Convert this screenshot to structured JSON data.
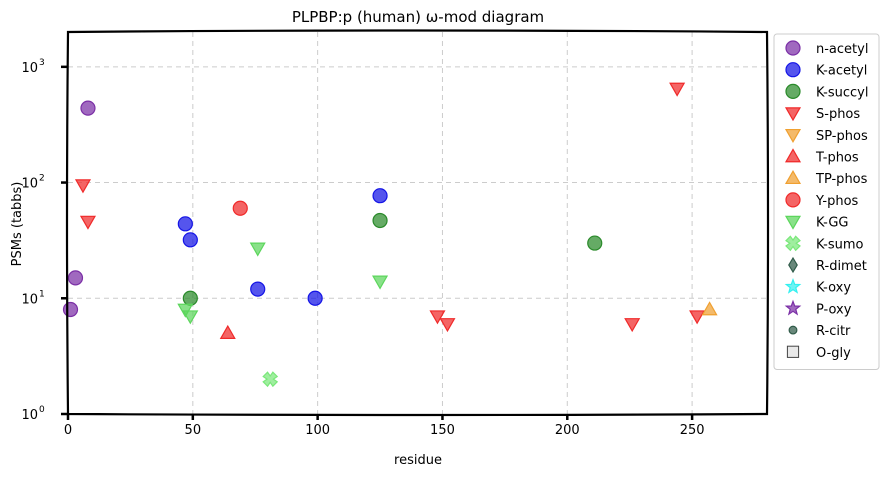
{
  "chart_data": {
    "type": "scatter",
    "title": "PLPBP:p (human) ω-mod diagram",
    "xlabel": "residue",
    "ylabel": "PSMs (tabbs)",
    "xlim": [
      0,
      280
    ],
    "ylim": [
      1,
      2000
    ],
    "yscale": "log",
    "grid": true,
    "legend_position": "right, outside plot",
    "x_ticks": [
      {
        "value": 0,
        "label": "0"
      },
      {
        "value": 50,
        "label": "50"
      },
      {
        "value": 100,
        "label": "100"
      },
      {
        "value": 150,
        "label": "150"
      },
      {
        "value": 200,
        "label": "200"
      },
      {
        "value": 250,
        "label": "250"
      }
    ],
    "y_ticks": [
      {
        "value": 1,
        "label": "10",
        "exp": "0"
      },
      {
        "value": 10,
        "label": "10",
        "exp": "1"
      },
      {
        "value": 100,
        "label": "10",
        "exp": "2"
      },
      {
        "value": 1000,
        "label": "10",
        "exp": "3"
      }
    ],
    "series": [
      {
        "name": "n-acetyl",
        "marker": "circle",
        "color": "#7b2fa6",
        "points": [
          [
            1,
            8
          ],
          [
            3,
            15
          ],
          [
            8,
            440
          ]
        ]
      },
      {
        "name": "K-acetyl",
        "marker": "circle",
        "color": "#1414e6",
        "points": [
          [
            47,
            44
          ],
          [
            49,
            32
          ],
          [
            76,
            12
          ],
          [
            99,
            10
          ],
          [
            125,
            77
          ]
        ]
      },
      {
        "name": "K-succyl",
        "marker": "circle",
        "color": "#2a8a2a",
        "points": [
          [
            49,
            10
          ],
          [
            125,
            47
          ],
          [
            211,
            30
          ]
        ]
      },
      {
        "name": "S-phos",
        "marker": "triangle-down",
        "color": "#f02a2a",
        "points": [
          [
            6,
            95
          ],
          [
            8,
            46
          ],
          [
            148,
            7
          ],
          [
            152,
            6
          ],
          [
            226,
            6
          ],
          [
            244,
            650
          ],
          [
            252,
            7
          ]
        ]
      },
      {
        "name": "SP-phos",
        "marker": "triangle-down",
        "color": "#f0a030",
        "points": []
      },
      {
        "name": "T-phos",
        "marker": "triangle-up",
        "color": "#f02a2a",
        "points": [
          [
            64,
            5
          ]
        ]
      },
      {
        "name": "TP-phos",
        "marker": "triangle-up",
        "color": "#f0a030",
        "points": [
          [
            257,
            8
          ]
        ]
      },
      {
        "name": "Y-phos",
        "marker": "circle",
        "color": "#f02a2a",
        "points": [
          [
            69,
            60
          ]
        ]
      },
      {
        "name": "K-GG",
        "marker": "triangle-down",
        "color": "#5cd65c",
        "points": [
          [
            47,
            8
          ],
          [
            49,
            7
          ],
          [
            76,
            27
          ],
          [
            125,
            14
          ]
        ]
      },
      {
        "name": "K-sumo",
        "marker": "x",
        "color": "#7ae87a",
        "points": [
          [
            81,
            2
          ]
        ]
      },
      {
        "name": "R-dimet",
        "marker": "diamond",
        "color": "#2f5a48",
        "points": []
      },
      {
        "name": "K-oxy",
        "marker": "star",
        "color": "#33f0f0",
        "points": []
      },
      {
        "name": "P-oxy",
        "marker": "star",
        "color": "#7b2fa6",
        "points": []
      },
      {
        "name": "R-citr",
        "marker": "small-circle",
        "color": "#2f5a48",
        "points": []
      },
      {
        "name": "O-gly",
        "marker": "square",
        "color": "#e0e0e0",
        "points": []
      }
    ]
  }
}
